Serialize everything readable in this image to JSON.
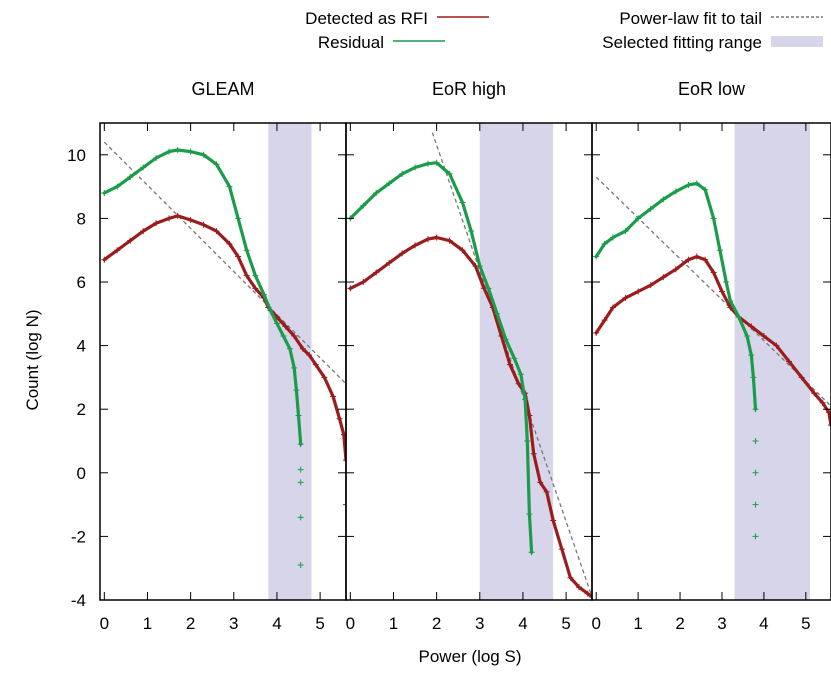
{
  "chart_data": [
    {
      "type": "scatter",
      "title": "GLEAM",
      "xlabel": "Power (log S)",
      "ylabel": "Count (log N)",
      "xlim": [
        -0.1,
        5.6
      ],
      "ylim": [
        -4,
        11
      ],
      "x_ticks": [
        "0",
        "1",
        "2",
        "3",
        "4",
        "5"
      ],
      "y_ticks": [
        "-4",
        "-2",
        "0",
        "2",
        "4",
        "6",
        "8",
        "10"
      ],
      "fit_range": [
        3.8,
        4.8
      ],
      "fit_line": {
        "x": [
          0,
          5.6
        ],
        "y": [
          10.4,
          2.8
        ]
      },
      "series": [
        {
          "name": "Detected as RFI",
          "points": [
            [
              0,
              6.7
            ],
            [
              0.3,
              7.0
            ],
            [
              0.6,
              7.3
            ],
            [
              0.9,
              7.6
            ],
            [
              1.2,
              7.85
            ],
            [
              1.5,
              8.0
            ],
            [
              1.7,
              8.08
            ],
            [
              2.0,
              7.95
            ],
            [
              2.3,
              7.8
            ],
            [
              2.6,
              7.6
            ],
            [
              2.9,
              7.2
            ],
            [
              3.1,
              6.8
            ],
            [
              3.3,
              6.2
            ],
            [
              3.5,
              5.8
            ],
            [
              3.7,
              5.5
            ],
            [
              3.8,
              5.2
            ],
            [
              4.0,
              4.9
            ],
            [
              4.2,
              4.6
            ],
            [
              4.4,
              4.3
            ],
            [
              4.6,
              3.9
            ],
            [
              4.75,
              3.7
            ],
            [
              4.9,
              3.4
            ],
            [
              5.1,
              3.0
            ],
            [
              5.3,
              2.4
            ],
            [
              5.45,
              1.7
            ],
            [
              5.55,
              1.2
            ],
            [
              5.6,
              0.4
            ],
            [
              5.6,
              -1.0
            ]
          ]
        },
        {
          "name": "Residual",
          "points": [
            [
              0,
              8.8
            ],
            [
              0.3,
              9.0
            ],
            [
              0.6,
              9.3
            ],
            [
              0.9,
              9.6
            ],
            [
              1.2,
              9.9
            ],
            [
              1.5,
              10.1
            ],
            [
              1.7,
              10.15
            ],
            [
              2.0,
              10.1
            ],
            [
              2.3,
              10.0
            ],
            [
              2.6,
              9.7
            ],
            [
              2.9,
              9.0
            ],
            [
              3.1,
              8.0
            ],
            [
              3.3,
              7.0
            ],
            [
              3.5,
              6.2
            ],
            [
              3.7,
              5.6
            ],
            [
              3.85,
              5.1
            ],
            [
              4.0,
              4.7
            ],
            [
              4.15,
              4.3
            ],
            [
              4.3,
              3.9
            ],
            [
              4.4,
              3.3
            ],
            [
              4.45,
              2.6
            ],
            [
              4.5,
              1.8
            ],
            [
              4.55,
              0.9
            ],
            [
              4.55,
              0.1
            ],
            [
              4.55,
              -0.3
            ],
            [
              4.55,
              -1.4
            ],
            [
              4.55,
              -2.9
            ]
          ]
        }
      ]
    },
    {
      "type": "scatter",
      "title": "EoR high",
      "xlabel": "Power (log S)",
      "ylabel": "Count (log N)",
      "xlim": [
        -0.1,
        5.6
      ],
      "ylim": [
        -4,
        11
      ],
      "x_ticks": [
        "0",
        "1",
        "2",
        "3",
        "4",
        "5"
      ],
      "y_ticks": [
        "-4",
        "-2",
        "0",
        "2",
        "4",
        "6",
        "8",
        "10"
      ],
      "fit_range": [
        3.0,
        4.7
      ],
      "fit_line": {
        "x": [
          1.9,
          5.6
        ],
        "y": [
          10.7,
          -3.9
        ]
      },
      "series": [
        {
          "name": "Detected as RFI",
          "points": [
            [
              0,
              5.8
            ],
            [
              0.3,
              6.0
            ],
            [
              0.6,
              6.3
            ],
            [
              0.9,
              6.6
            ],
            [
              1.2,
              6.9
            ],
            [
              1.5,
              7.15
            ],
            [
              1.8,
              7.35
            ],
            [
              2.0,
              7.4
            ],
            [
              2.3,
              7.3
            ],
            [
              2.6,
              7.0
            ],
            [
              2.9,
              6.5
            ],
            [
              3.1,
              5.8
            ],
            [
              3.3,
              5.2
            ],
            [
              3.5,
              4.3
            ],
            [
              3.7,
              3.4
            ],
            [
              3.9,
              2.8
            ],
            [
              4.05,
              2.5
            ],
            [
              4.15,
              1.8
            ],
            [
              4.25,
              0.6
            ],
            [
              4.4,
              -0.3
            ],
            [
              4.55,
              -0.6
            ],
            [
              4.7,
              -1.5
            ],
            [
              4.9,
              -2.4
            ],
            [
              5.1,
              -3.3
            ],
            [
              5.3,
              -3.6
            ],
            [
              5.5,
              -3.8
            ],
            [
              5.6,
              -3.9
            ]
          ]
        },
        {
          "name": "Residual",
          "points": [
            [
              0,
              8.0
            ],
            [
              0.3,
              8.4
            ],
            [
              0.6,
              8.8
            ],
            [
              0.9,
              9.1
            ],
            [
              1.2,
              9.4
            ],
            [
              1.5,
              9.6
            ],
            [
              1.8,
              9.72
            ],
            [
              2.0,
              9.75
            ],
            [
              2.3,
              9.4
            ],
            [
              2.6,
              8.5
            ],
            [
              2.8,
              7.6
            ],
            [
              3.0,
              6.5
            ],
            [
              3.2,
              5.8
            ],
            [
              3.4,
              5.0
            ],
            [
              3.6,
              4.2
            ],
            [
              3.8,
              3.6
            ],
            [
              3.95,
              3.1
            ],
            [
              4.05,
              2.3
            ],
            [
              4.1,
              1.0
            ],
            [
              4.15,
              -1.3
            ],
            [
              4.2,
              -2.5
            ]
          ]
        }
      ]
    },
    {
      "type": "scatter",
      "title": "EoR low",
      "xlabel": "Power (log S)",
      "ylabel": "Count (log N)",
      "xlim": [
        -0.1,
        5.6
      ],
      "ylim": [
        -4,
        11
      ],
      "x_ticks": [
        "0",
        "1",
        "2",
        "3",
        "4",
        "5"
      ],
      "y_ticks": [
        "-4",
        "-2",
        "0",
        "2",
        "4",
        "6",
        "8",
        "10"
      ],
      "fit_range": [
        3.3,
        5.1
      ],
      "fit_line": {
        "x": [
          0,
          5.6
        ],
        "y": [
          9.3,
          2.1
        ]
      },
      "series": [
        {
          "name": "Detected as RFI",
          "points": [
            [
              0,
              4.4
            ],
            [
              0.2,
              4.8
            ],
            [
              0.4,
              5.2
            ],
            [
              0.7,
              5.5
            ],
            [
              1.0,
              5.7
            ],
            [
              1.3,
              5.9
            ],
            [
              1.6,
              6.15
            ],
            [
              1.9,
              6.4
            ],
            [
              2.2,
              6.7
            ],
            [
              2.4,
              6.8
            ],
            [
              2.6,
              6.7
            ],
            [
              2.8,
              6.3
            ],
            [
              3.0,
              5.7
            ],
            [
              3.2,
              5.2
            ],
            [
              3.4,
              4.9
            ],
            [
              3.7,
              4.6
            ],
            [
              4.0,
              4.3
            ],
            [
              4.3,
              4.0
            ],
            [
              4.6,
              3.5
            ],
            [
              4.9,
              3.0
            ],
            [
              5.2,
              2.5
            ],
            [
              5.4,
              2.2
            ],
            [
              5.55,
              1.9
            ],
            [
              5.6,
              1.5
            ]
          ]
        },
        {
          "name": "Residual",
          "points": [
            [
              0,
              6.8
            ],
            [
              0.2,
              7.2
            ],
            [
              0.4,
              7.4
            ],
            [
              0.7,
              7.6
            ],
            [
              1.0,
              8.0
            ],
            [
              1.3,
              8.3
            ],
            [
              1.6,
              8.6
            ],
            [
              1.9,
              8.85
            ],
            [
              2.2,
              9.05
            ],
            [
              2.4,
              9.1
            ],
            [
              2.6,
              8.9
            ],
            [
              2.8,
              8.0
            ],
            [
              2.95,
              7.0
            ],
            [
              3.1,
              6.0
            ],
            [
              3.2,
              5.4
            ],
            [
              3.4,
              4.9
            ],
            [
              3.6,
              4.3
            ],
            [
              3.7,
              3.7
            ],
            [
              3.75,
              3.0
            ],
            [
              3.8,
              2.0
            ],
            [
              3.8,
              1.0
            ],
            [
              3.8,
              0.0
            ],
            [
              3.8,
              -1.0
            ],
            [
              3.8,
              -2.0
            ]
          ]
        }
      ]
    }
  ],
  "legend": {
    "items": [
      {
        "label": "Detected as RFI",
        "kind": "line",
        "color": "#9b1c1c"
      },
      {
        "label": "Residual",
        "kind": "line",
        "color": "#1a9c4a"
      },
      {
        "label": "Power-law fit to tail",
        "kind": "dashed",
        "color": "#777777"
      },
      {
        "label": "Selected fitting range",
        "kind": "box",
        "color": "#d7d5ea"
      }
    ]
  },
  "shared_axes": {
    "xlabel": "Power (log S)",
    "ylabel": "Count (log N)"
  },
  "colors": {
    "rfi": "#9b1c1c",
    "residual": "#1a9c4a",
    "fit": "#777777",
    "range": "#d7d5ea"
  }
}
